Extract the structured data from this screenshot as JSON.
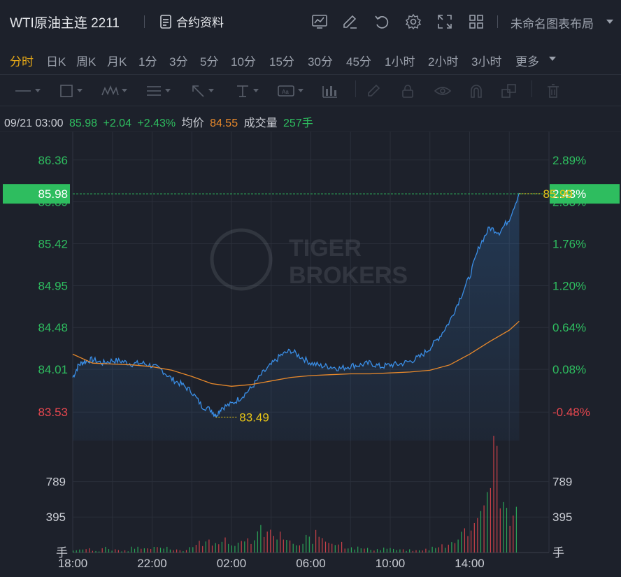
{
  "header": {
    "title": "WTI原油主连 2211",
    "doc_label": "合约资料",
    "layout_label": "未命名图表布局"
  },
  "tabs": [
    "分时",
    "日K",
    "周K",
    "月K",
    "1分",
    "3分",
    "5分",
    "10分",
    "15分",
    "30分",
    "45分",
    "1小时",
    "2小时",
    "3小时",
    "更多"
  ],
  "active_tab": "分时",
  "info": {
    "datetime": "09/21 03:00",
    "price": "85.98",
    "change": "+2.04",
    "change_pct": "+2.43%",
    "avg_label": "均价",
    "avg_value": "84.55",
    "volume_label": "成交量",
    "volume_value": "257手"
  },
  "watermark": {
    "line1": "TIGER",
    "line2": "BROKERS"
  },
  "colors": {
    "up": "#2ebd5f",
    "down": "#e8474f",
    "price_line": "#3a8ee6",
    "avg_line": "#e8892b",
    "highlight": "#e6c417",
    "current_tag": "#2ebd5f"
  },
  "chart_data": {
    "type": "line",
    "price_ticks_left": [
      "86.36",
      "85.89",
      "85.42",
      "84.95",
      "84.48",
      "84.01",
      "83.53"
    ],
    "pct_ticks_right": [
      "2.89%",
      "2.33%",
      "1.76%",
      "1.20%",
      "0.64%",
      "0.08%",
      "-0.48%"
    ],
    "current_price_tag": "85.98",
    "current_pct_tag": "2.43%",
    "high_label": "85.99",
    "low_label": "83.49",
    "volume_ticks": [
      "789",
      "395"
    ],
    "volume_unit": "手",
    "x_ticks": [
      "18:00",
      "22:00",
      "02:00",
      "06:00",
      "10:00",
      "14:00"
    ],
    "y_range": [
      83.21,
      86.68
    ],
    "volume_range": [
      0,
      1183
    ],
    "price_series": {
      "name": "price",
      "points": [
        [
          0,
          83.92
        ],
        [
          0.3,
          84.06
        ],
        [
          0.6,
          84.1
        ],
        [
          1.0,
          84.12
        ],
        [
          1.5,
          84.08
        ],
        [
          2.0,
          84.11
        ],
        [
          2.5,
          84.1
        ],
        [
          3.0,
          84.07
        ],
        [
          3.5,
          84.08
        ],
        [
          4.0,
          84.05
        ],
        [
          4.5,
          84.0
        ],
        [
          5.0,
          83.9
        ],
        [
          5.5,
          83.84
        ],
        [
          6.0,
          83.76
        ],
        [
          6.5,
          83.6
        ],
        [
          7.0,
          83.55
        ],
        [
          7.2,
          83.49
        ],
        [
          7.5,
          83.58
        ],
        [
          8.0,
          83.62
        ],
        [
          8.5,
          83.7
        ],
        [
          9.0,
          83.8
        ],
        [
          9.5,
          83.95
        ],
        [
          10.0,
          84.06
        ],
        [
          10.5,
          84.17
        ],
        [
          11.0,
          84.22
        ],
        [
          11.5,
          84.15
        ],
        [
          12.0,
          84.08
        ],
        [
          12.5,
          84.05
        ],
        [
          13.0,
          84.04
        ],
        [
          13.5,
          84.02
        ],
        [
          14.0,
          84.05
        ],
        [
          14.5,
          84.06
        ],
        [
          15.0,
          84.08
        ],
        [
          15.5,
          84.04
        ],
        [
          16.0,
          84.06
        ],
        [
          16.5,
          84.07
        ],
        [
          17.0,
          84.1
        ],
        [
          17.5,
          84.15
        ],
        [
          18.0,
          84.25
        ],
        [
          18.5,
          84.38
        ],
        [
          19.0,
          84.55
        ],
        [
          19.5,
          84.8
        ],
        [
          20.0,
          85.05
        ],
        [
          20.5,
          85.4
        ],
        [
          21.0,
          85.6
        ],
        [
          21.5,
          85.55
        ],
        [
          22.0,
          85.7
        ],
        [
          22.5,
          85.99
        ]
      ]
    },
    "avg_series": {
      "name": "average",
      "points": [
        [
          0,
          84.18
        ],
        [
          1.0,
          84.08
        ],
        [
          2.0,
          84.07
        ],
        [
          3.0,
          84.06
        ],
        [
          4.0,
          84.04
        ],
        [
          5.0,
          84.0
        ],
        [
          6.0,
          83.93
        ],
        [
          7.0,
          83.85
        ],
        [
          8.0,
          83.82
        ],
        [
          9.0,
          83.84
        ],
        [
          10.0,
          83.88
        ],
        [
          11.0,
          83.92
        ],
        [
          12.0,
          83.94
        ],
        [
          13.0,
          83.95
        ],
        [
          14.0,
          83.96
        ],
        [
          15.0,
          83.96
        ],
        [
          16.0,
          83.97
        ],
        [
          17.0,
          83.98
        ],
        [
          18.0,
          84.0
        ],
        [
          19.0,
          84.06
        ],
        [
          20.0,
          84.18
        ],
        [
          21.0,
          84.32
        ],
        [
          22.0,
          84.45
        ],
        [
          22.5,
          84.55
        ]
      ]
    },
    "volume_series": {
      "name": "volume",
      "values": [
        30,
        45,
        20,
        60,
        35,
        25,
        80,
        40,
        55,
        70,
        45,
        30,
        90,
        120,
        150,
        180,
        140,
        110,
        160,
        260,
        240,
        200,
        130,
        90,
        180,
        210,
        160,
        120,
        80,
        60,
        45,
        40,
        55,
        35,
        30,
        25,
        40,
        60,
        90,
        180,
        260,
        420,
        700,
        1100,
        620,
        480
      ]
    },
    "x_range_hours": [
      0,
      24
    ],
    "grid": true
  }
}
